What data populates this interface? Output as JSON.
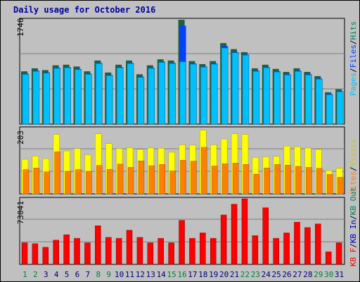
{
  "title": "Daily usage for October 2016",
  "colors": {
    "panel_bg": "#c0c0c0",
    "hits": "#00c0ff",
    "hits_edge": "#0070a0",
    "files": "#0040ff",
    "pages": "#00c0ff",
    "visits": "#ffff00",
    "sites": "#ff8000",
    "kbin": "#0000c0",
    "kbout": "#007f5f",
    "kbf": "#ff0000",
    "shadow": "#206040",
    "weekend_day": "#00803f",
    "weekday": "#000080"
  },
  "chart_data": [
    {
      "type": "bar",
      "name": "hits-files-pages",
      "ymax_label": "1740",
      "ylim": [
        0,
        1740
      ],
      "legend": [
        "Pages",
        "Files",
        "Hits"
      ],
      "series": [
        {
          "name": "Hits",
          "values": [
            880,
            930,
            900,
            980,
            990,
            960,
            880,
            1060,
            860,
            990,
            1060,
            830,
            980,
            1080,
            1060,
            1740,
            1050,
            1000,
            1050,
            1350,
            1250,
            1200,
            930,
            990,
            920,
            870,
            930,
            870,
            800,
            530,
            580
          ]
        },
        {
          "name": "Files",
          "values": [
            840,
            890,
            860,
            940,
            950,
            920,
            840,
            1020,
            820,
            950,
            1020,
            790,
            940,
            1040,
            1020,
            1640,
            1010,
            960,
            1010,
            1300,
            1200,
            1160,
            890,
            950,
            880,
            830,
            890,
            830,
            760,
            500,
            550
          ]
        },
        {
          "name": "Pages",
          "values": [
            830,
            880,
            850,
            930,
            940,
            910,
            830,
            1010,
            810,
            940,
            1010,
            780,
            930,
            1030,
            1010,
            1040,
            1000,
            950,
            1000,
            1270,
            1190,
            1150,
            880,
            940,
            870,
            820,
            880,
            820,
            750,
            490,
            540
          ]
        }
      ]
    },
    {
      "type": "bar",
      "name": "visits-sites",
      "ymax_label": "203",
      "ylim": [
        0,
        203
      ],
      "legend": [
        "Sites",
        "Visits"
      ],
      "series": [
        {
          "name": "Visits",
          "values": [
            107,
            117,
            109,
            184,
            133,
            140,
            121,
            186,
            156,
            140,
            143,
            138,
            142,
            141,
            129,
            152,
            151,
            197,
            152,
            170,
            186,
            184,
            113,
            115,
            116,
            148,
            146,
            142,
            138,
            72,
            79
          ]
        },
        {
          "name": "Sites",
          "values": [
            75,
            80,
            68,
            130,
            70,
            75,
            70,
            88,
            76,
            92,
            82,
            102,
            87,
            91,
            71,
            104,
            101,
            144,
            86,
            93,
            95,
            91,
            61,
            80,
            91,
            89,
            85,
            82,
            79,
            60,
            51
          ]
        }
      ]
    },
    {
      "type": "bar",
      "name": "kbytes",
      "ymax_label": "73041",
      "ylim": [
        0,
        73041
      ],
      "legend": [
        "KB F",
        "KB In",
        "KB Out"
      ],
      "series": [
        {
          "name": "KB F",
          "values": [
            24000,
            23000,
            19000,
            27000,
            33000,
            29000,
            24000,
            43000,
            30000,
            29000,
            38000,
            30000,
            24000,
            29000,
            24000,
            49000,
            29000,
            35000,
            29000,
            55000,
            67000,
            73041,
            32000,
            63000,
            29000,
            35000,
            47000,
            41000,
            45000,
            14000,
            24000
          ]
        }
      ],
      "x": [
        "1",
        "2",
        "3",
        "4",
        "5",
        "6",
        "7",
        "8",
        "9",
        "10",
        "11",
        "12",
        "13",
        "14",
        "15",
        "16",
        "17",
        "18",
        "19",
        "20",
        "21",
        "22",
        "23",
        "24",
        "25",
        "26",
        "27",
        "28",
        "29",
        "30",
        "31"
      ],
      "weekend_days": [
        "1",
        "2",
        "8",
        "9",
        "15",
        "16",
        "22",
        "23",
        "29",
        "30"
      ]
    }
  ],
  "right_labels": {
    "top": [
      "Pages",
      "/",
      "Files",
      "/",
      "Hits"
    ],
    "mid": [
      "Sites",
      "/",
      "Visits"
    ],
    "bot": [
      "KB F",
      "/",
      "KB In",
      "/",
      "KB Out"
    ]
  }
}
